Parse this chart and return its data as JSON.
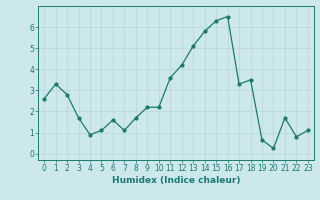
{
  "x": [
    0,
    1,
    2,
    3,
    4,
    5,
    6,
    7,
    8,
    9,
    10,
    11,
    12,
    13,
    14,
    15,
    16,
    17,
    18,
    19,
    20,
    21,
    22,
    23
  ],
  "y": [
    2.6,
    3.3,
    2.8,
    1.7,
    0.9,
    1.1,
    1.6,
    1.1,
    1.7,
    2.2,
    2.2,
    3.6,
    4.2,
    5.1,
    5.8,
    6.3,
    6.5,
    3.3,
    3.5,
    0.65,
    0.25,
    1.7,
    0.8,
    1.1
  ],
  "line_color": "#1a7a6e",
  "marker": "o",
  "markersize": 2.0,
  "linewidth": 0.9,
  "xlabel": "Humidex (Indice chaleur)",
  "xlim": [
    -0.5,
    23.5
  ],
  "ylim": [
    -0.3,
    7.0
  ],
  "yticks": [
    0,
    1,
    2,
    3,
    4,
    5,
    6
  ],
  "xticks": [
    0,
    1,
    2,
    3,
    4,
    5,
    6,
    7,
    8,
    9,
    10,
    11,
    12,
    13,
    14,
    15,
    16,
    17,
    18,
    19,
    20,
    21,
    22,
    23
  ],
  "bg_color": "#cde8eb",
  "grid_color": "#b8d4d8",
  "tick_color": "#1a7a6e",
  "label_color": "#1a7a6e",
  "xlabel_fontsize": 6.5,
  "tick_fontsize": 5.5
}
